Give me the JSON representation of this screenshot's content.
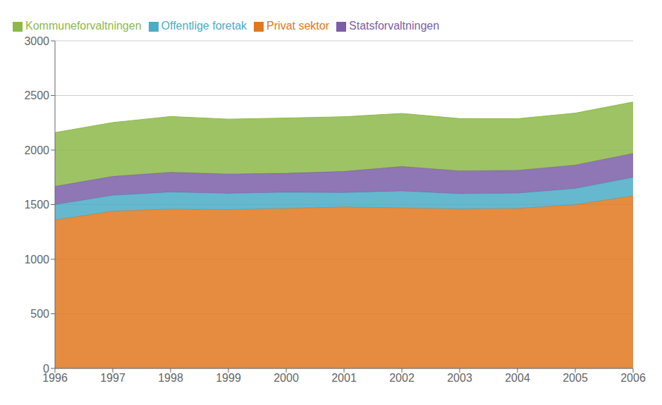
{
  "chart_data": {
    "type": "area",
    "stacked": true,
    "x": [
      1996,
      1997,
      1998,
      1999,
      2000,
      2001,
      2002,
      2003,
      2004,
      2005,
      2006
    ],
    "series": [
      {
        "name": "Privat sektor",
        "color": "#E07820",
        "values": [
          1360,
          1440,
          1460,
          1455,
          1465,
          1480,
          1470,
          1460,
          1465,
          1500,
          1580
        ]
      },
      {
        "name": "Offentlige foretak",
        "color": "#4BACC6",
        "values": [
          140,
          145,
          155,
          148,
          148,
          130,
          155,
          140,
          140,
          148,
          170
        ]
      },
      {
        "name": "Statsforvaltningen",
        "color": "#7B5EA7",
        "values": [
          168,
          175,
          182,
          178,
          175,
          195,
          225,
          210,
          210,
          215,
          220
        ]
      },
      {
        "name": "Kommuneforvaltningen",
        "color": "#8DB94A",
        "values": [
          492,
          492,
          510,
          502,
          505,
          500,
          485,
          478,
          472,
          475,
          470
        ]
      }
    ],
    "xlim": [
      1996,
      2006
    ],
    "xticks": [
      1996,
      1997,
      1998,
      1999,
      2000,
      2001,
      2002,
      2003,
      2004,
      2005,
      2006
    ],
    "ylim": [
      0,
      3000
    ],
    "yticks": [
      0,
      500,
      1000,
      1500,
      2000,
      2500,
      3000
    ],
    "grid": true,
    "legend": "upper left"
  }
}
